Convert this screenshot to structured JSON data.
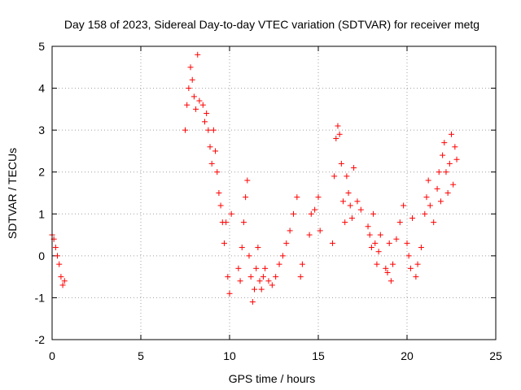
{
  "chart_data": {
    "type": "scatter",
    "title": "Day 158 of 2023, Sidereal Day-to-day VTEC variation (SDTVAR) for receiver metg",
    "xlabel": "GPS time / hours",
    "ylabel": "SDTVAR / TECUs",
    "xlim": [
      0,
      25
    ],
    "ylim": [
      -2,
      5
    ],
    "xticks": [
      0,
      5,
      10,
      15,
      20,
      25
    ],
    "yticks": [
      -2,
      -1,
      0,
      1,
      2,
      3,
      4,
      5
    ],
    "xtick_labels": [
      "0",
      "5",
      "10",
      "15",
      "20",
      "25"
    ],
    "ytick_labels": [
      "-2",
      "-1",
      "0",
      "1",
      "2",
      "3",
      "4",
      "5"
    ],
    "grid": true,
    "marker": "+",
    "color": "#ff0000",
    "series": [
      {
        "name": "SDTVAR",
        "x": [
          0.0,
          0.1,
          0.2,
          0.3,
          0.4,
          0.5,
          0.6,
          0.7,
          7.5,
          7.6,
          7.7,
          7.8,
          7.9,
          8.0,
          8.1,
          8.2,
          8.3,
          8.5,
          8.6,
          8.7,
          8.8,
          8.9,
          9.0,
          9.1,
          9.2,
          9.3,
          9.4,
          9.5,
          9.6,
          9.7,
          9.8,
          9.9,
          10.0,
          10.1,
          10.5,
          10.6,
          10.7,
          10.8,
          10.9,
          11.0,
          11.1,
          11.2,
          11.3,
          11.4,
          11.5,
          11.6,
          11.7,
          11.8,
          11.9,
          12.0,
          12.2,
          12.4,
          12.6,
          12.8,
          13.0,
          13.2,
          13.4,
          13.6,
          13.8,
          14.0,
          14.1,
          14.5,
          14.6,
          14.8,
          15.0,
          15.1,
          15.8,
          15.9,
          16.0,
          16.1,
          16.2,
          16.3,
          16.4,
          16.5,
          16.6,
          16.7,
          16.8,
          16.9,
          17.0,
          17.2,
          17.4,
          17.8,
          17.9,
          18.0,
          18.1,
          18.2,
          18.3,
          18.4,
          18.5,
          18.8,
          18.9,
          19.0,
          19.1,
          19.2,
          19.4,
          19.6,
          19.8,
          20.0,
          20.1,
          20.2,
          20.3,
          20.5,
          20.6,
          20.8,
          21.0,
          21.1,
          21.2,
          21.3,
          21.5,
          21.7,
          21.8,
          21.9,
          22.0,
          22.1,
          22.2,
          22.3,
          22.4,
          22.5,
          22.6,
          22.7,
          22.8
        ],
        "y": [
          0.5,
          0.4,
          0.2,
          0.0,
          -0.2,
          -0.5,
          -0.7,
          -0.6,
          3.0,
          3.6,
          4.0,
          4.5,
          4.2,
          3.8,
          3.5,
          4.8,
          3.7,
          3.6,
          3.2,
          3.4,
          3.0,
          2.6,
          2.2,
          3.0,
          2.5,
          2.0,
          1.5,
          1.2,
          0.8,
          0.3,
          0.8,
          -0.5,
          -0.9,
          1.0,
          -0.3,
          -0.6,
          0.2,
          0.8,
          1.4,
          1.8,
          0.0,
          -0.5,
          -1.1,
          -0.8,
          -0.3,
          0.2,
          -0.6,
          -0.8,
          -0.5,
          -0.3,
          -0.6,
          -0.7,
          -0.5,
          -0.2,
          0.0,
          0.3,
          0.6,
          1.0,
          1.4,
          -0.5,
          -0.2,
          0.5,
          1.0,
          1.1,
          1.4,
          0.6,
          0.3,
          1.9,
          2.8,
          3.1,
          2.9,
          2.2,
          1.3,
          0.8,
          1.9,
          1.5,
          1.2,
          0.9,
          2.1,
          1.3,
          1.1,
          0.7,
          0.5,
          0.2,
          1.0,
          0.3,
          -0.2,
          0.1,
          0.5,
          -0.3,
          -0.4,
          0.3,
          -0.6,
          -0.2,
          0.4,
          0.8,
          1.2,
          0.3,
          0.0,
          -0.3,
          0.9,
          -0.5,
          -0.2,
          0.2,
          1.0,
          1.4,
          1.8,
          1.2,
          0.8,
          1.6,
          2.0,
          1.3,
          2.4,
          2.7,
          2.0,
          1.5,
          2.2,
          2.9,
          1.7,
          2.6,
          2.3
        ]
      }
    ]
  }
}
